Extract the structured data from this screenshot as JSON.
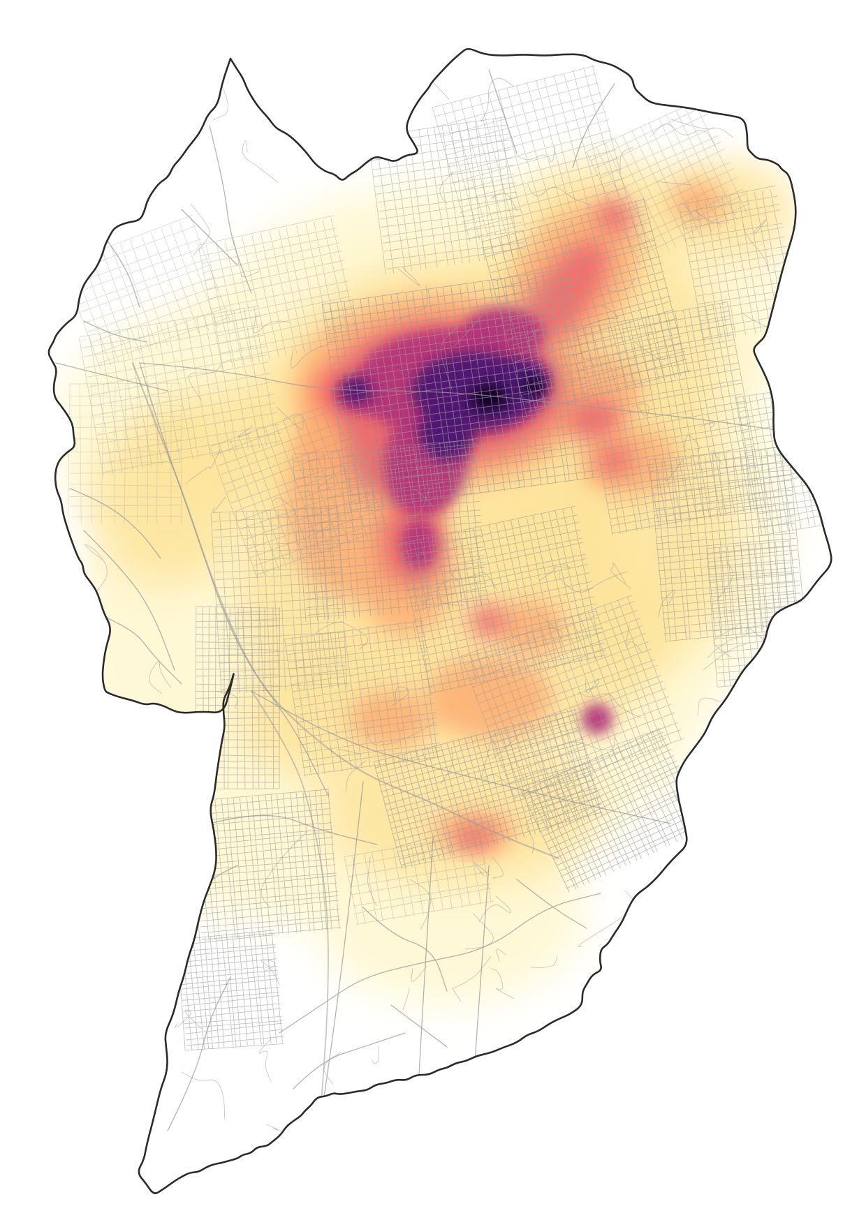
{
  "map": {
    "type": "density-heatmap",
    "colors": {
      "background": "#ffffff",
      "boundary": "#2b2b2b",
      "streets": "#9a9a9a",
      "heat_low": "#fff8d4",
      "heat_mid_low": "#fde49c",
      "heat_mid": "#fcae73",
      "heat_high": "#f2686b",
      "heat_very_high": "#b4307a",
      "heat_peak": "#4d1672",
      "heat_max": "#0d0221"
    },
    "legend": "none"
  }
}
